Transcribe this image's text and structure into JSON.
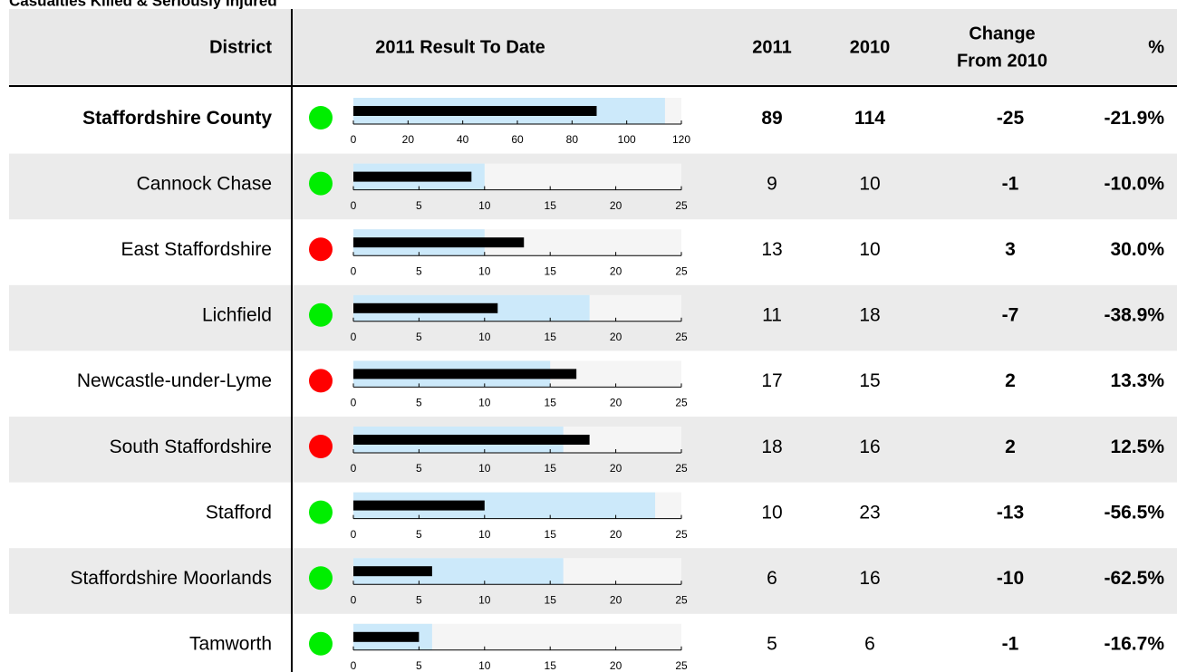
{
  "title": "Casualties Killed & Seriously Injured",
  "header": {
    "district": "District",
    "result": "2011 Result To Date",
    "y2011": "2011",
    "y2010": "2010",
    "change": [
      "Change",
      "From 2010"
    ],
    "pct": "%"
  },
  "colors": {
    "band": "#f5f5f5",
    "previous": "#cce9fa",
    "current": "#000000",
    "y2010_text": "#66669a",
    "header_bg": "#e8e8e8",
    "alt_row": "#ebebeb"
  },
  "rows": [
    {
      "district": "Staffordshire County",
      "bold": true,
      "dot_color": "#00ee00",
      "change_color": "#44bb44",
      "v2011": 89,
      "v2010": 114,
      "change": -25,
      "pct": "-21.9%",
      "xlim": [
        0,
        120
      ],
      "xticks": [
        0,
        20,
        40,
        60,
        80,
        100,
        120
      ]
    },
    {
      "district": "Cannock Chase",
      "dot_color": "#00ee00",
      "change_color": "#44bb44",
      "v2011": 9,
      "v2010": 10,
      "change": -1,
      "pct": "-10.0%",
      "xlim": [
        0,
        25
      ],
      "xticks": [
        0,
        5,
        10,
        15,
        20,
        25
      ]
    },
    {
      "district": "East Staffordshire",
      "dot_color": "#ff0000",
      "change_color": "#ff0000",
      "v2011": 13,
      "v2010": 10,
      "change": 3,
      "pct": "30.0%",
      "xlim": [
        0,
        25
      ],
      "xticks": [
        0,
        5,
        10,
        15,
        20,
        25
      ]
    },
    {
      "district": "Lichfield",
      "dot_color": "#00ee00",
      "change_color": "#44bb44",
      "v2011": 11,
      "v2010": 18,
      "change": -7,
      "pct": "-38.9%",
      "xlim": [
        0,
        25
      ],
      "xticks": [
        0,
        5,
        10,
        15,
        20,
        25
      ]
    },
    {
      "district": "Newcastle-under-Lyme",
      "dot_color": "#ff0000",
      "change_color": "#ff0000",
      "v2011": 17,
      "v2010": 15,
      "change": 2,
      "pct": "13.3%",
      "xlim": [
        0,
        25
      ],
      "xticks": [
        0,
        5,
        10,
        15,
        20,
        25
      ]
    },
    {
      "district": "South Staffordshire",
      "dot_color": "#ff0000",
      "change_color": "#ff0000",
      "v2011": 18,
      "v2010": 16,
      "change": 2,
      "pct": "12.5%",
      "xlim": [
        0,
        25
      ],
      "xticks": [
        0,
        5,
        10,
        15,
        20,
        25
      ]
    },
    {
      "district": "Stafford",
      "dot_color": "#00ee00",
      "change_color": "#44bb44",
      "v2011": 10,
      "v2010": 23,
      "change": -13,
      "pct": "-56.5%",
      "xlim": [
        0,
        25
      ],
      "xticks": [
        0,
        5,
        10,
        15,
        20,
        25
      ]
    },
    {
      "district": "Staffordshire Moorlands",
      "dot_color": "#00ee00",
      "change_color": "#44bb44",
      "v2011": 6,
      "v2010": 16,
      "change": -10,
      "pct": "-62.5%",
      "xlim": [
        0,
        25
      ],
      "xticks": [
        0,
        5,
        10,
        15,
        20,
        25
      ]
    },
    {
      "district": "Tamworth",
      "dot_color": "#00ee00",
      "change_color": "#44bb44",
      "v2011": 5,
      "v2010": 6,
      "change": -1,
      "pct": "-16.7%",
      "xlim": [
        0,
        25
      ],
      "xticks": [
        0,
        5,
        10,
        15,
        20,
        25
      ]
    }
  ]
}
